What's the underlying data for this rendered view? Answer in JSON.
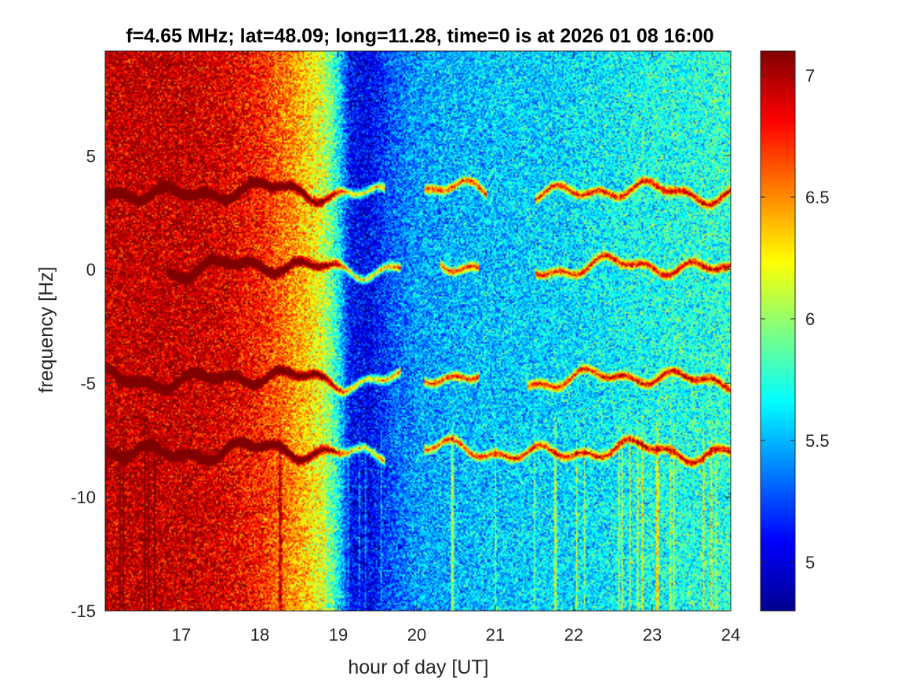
{
  "chart_data": {
    "type": "heatmap",
    "title": "f=4.65 MHz;  lat=48.09; long=11.28, time=0 is at 2026 01 08 16:00",
    "xlabel": "hour of day [UT]",
    "ylabel": "frequency [Hz]",
    "xlim": [
      16.03,
      24.0
    ],
    "ylim": [
      -15,
      9.6
    ],
    "xticks": [
      17,
      18,
      19,
      20,
      21,
      22,
      23,
      24
    ],
    "yticks": [
      -15,
      -10,
      -5,
      0,
      5
    ],
    "colormap": "jet",
    "colorbar": {
      "clim": [
        4.8,
        7.1
      ],
      "ticks": [
        5,
        5.5,
        6,
        6.5,
        7
      ],
      "location": "right"
    },
    "grid": false,
    "background_profile": [
      {
        "x": 16.03,
        "v": 6.95
      },
      {
        "x": 17.0,
        "v": 6.95
      },
      {
        "x": 17.5,
        "v": 6.9
      },
      {
        "x": 18.0,
        "v": 6.75
      },
      {
        "x": 18.4,
        "v": 6.5
      },
      {
        "x": 18.8,
        "v": 6.15
      },
      {
        "x": 19.0,
        "v": 5.7
      },
      {
        "x": 19.15,
        "v": 5.1
      },
      {
        "x": 19.4,
        "v": 5.05
      },
      {
        "x": 19.7,
        "v": 5.3
      },
      {
        "x": 20.0,
        "v": 5.45
      },
      {
        "x": 21.0,
        "v": 5.55
      },
      {
        "x": 22.0,
        "v": 5.6
      },
      {
        "x": 23.0,
        "v": 5.7
      },
      {
        "x": 24.0,
        "v": 5.75
      }
    ],
    "traces": [
      {
        "base": 3.4,
        "segments": [
          [
            16.03,
            19.6
          ],
          [
            20.1,
            20.9
          ],
          [
            21.5,
            24.0
          ]
        ]
      },
      {
        "base": 0.1,
        "segments": [
          [
            16.8,
            19.8
          ],
          [
            20.3,
            20.8
          ],
          [
            21.5,
            24.0
          ]
        ]
      },
      {
        "base": -4.8,
        "segments": [
          [
            16.03,
            19.8
          ],
          [
            20.1,
            20.8
          ],
          [
            21.4,
            24.0
          ]
        ]
      },
      {
        "base": -8.0,
        "segments": [
          [
            16.03,
            19.6
          ],
          [
            20.1,
            24.0
          ]
        ]
      }
    ]
  }
}
